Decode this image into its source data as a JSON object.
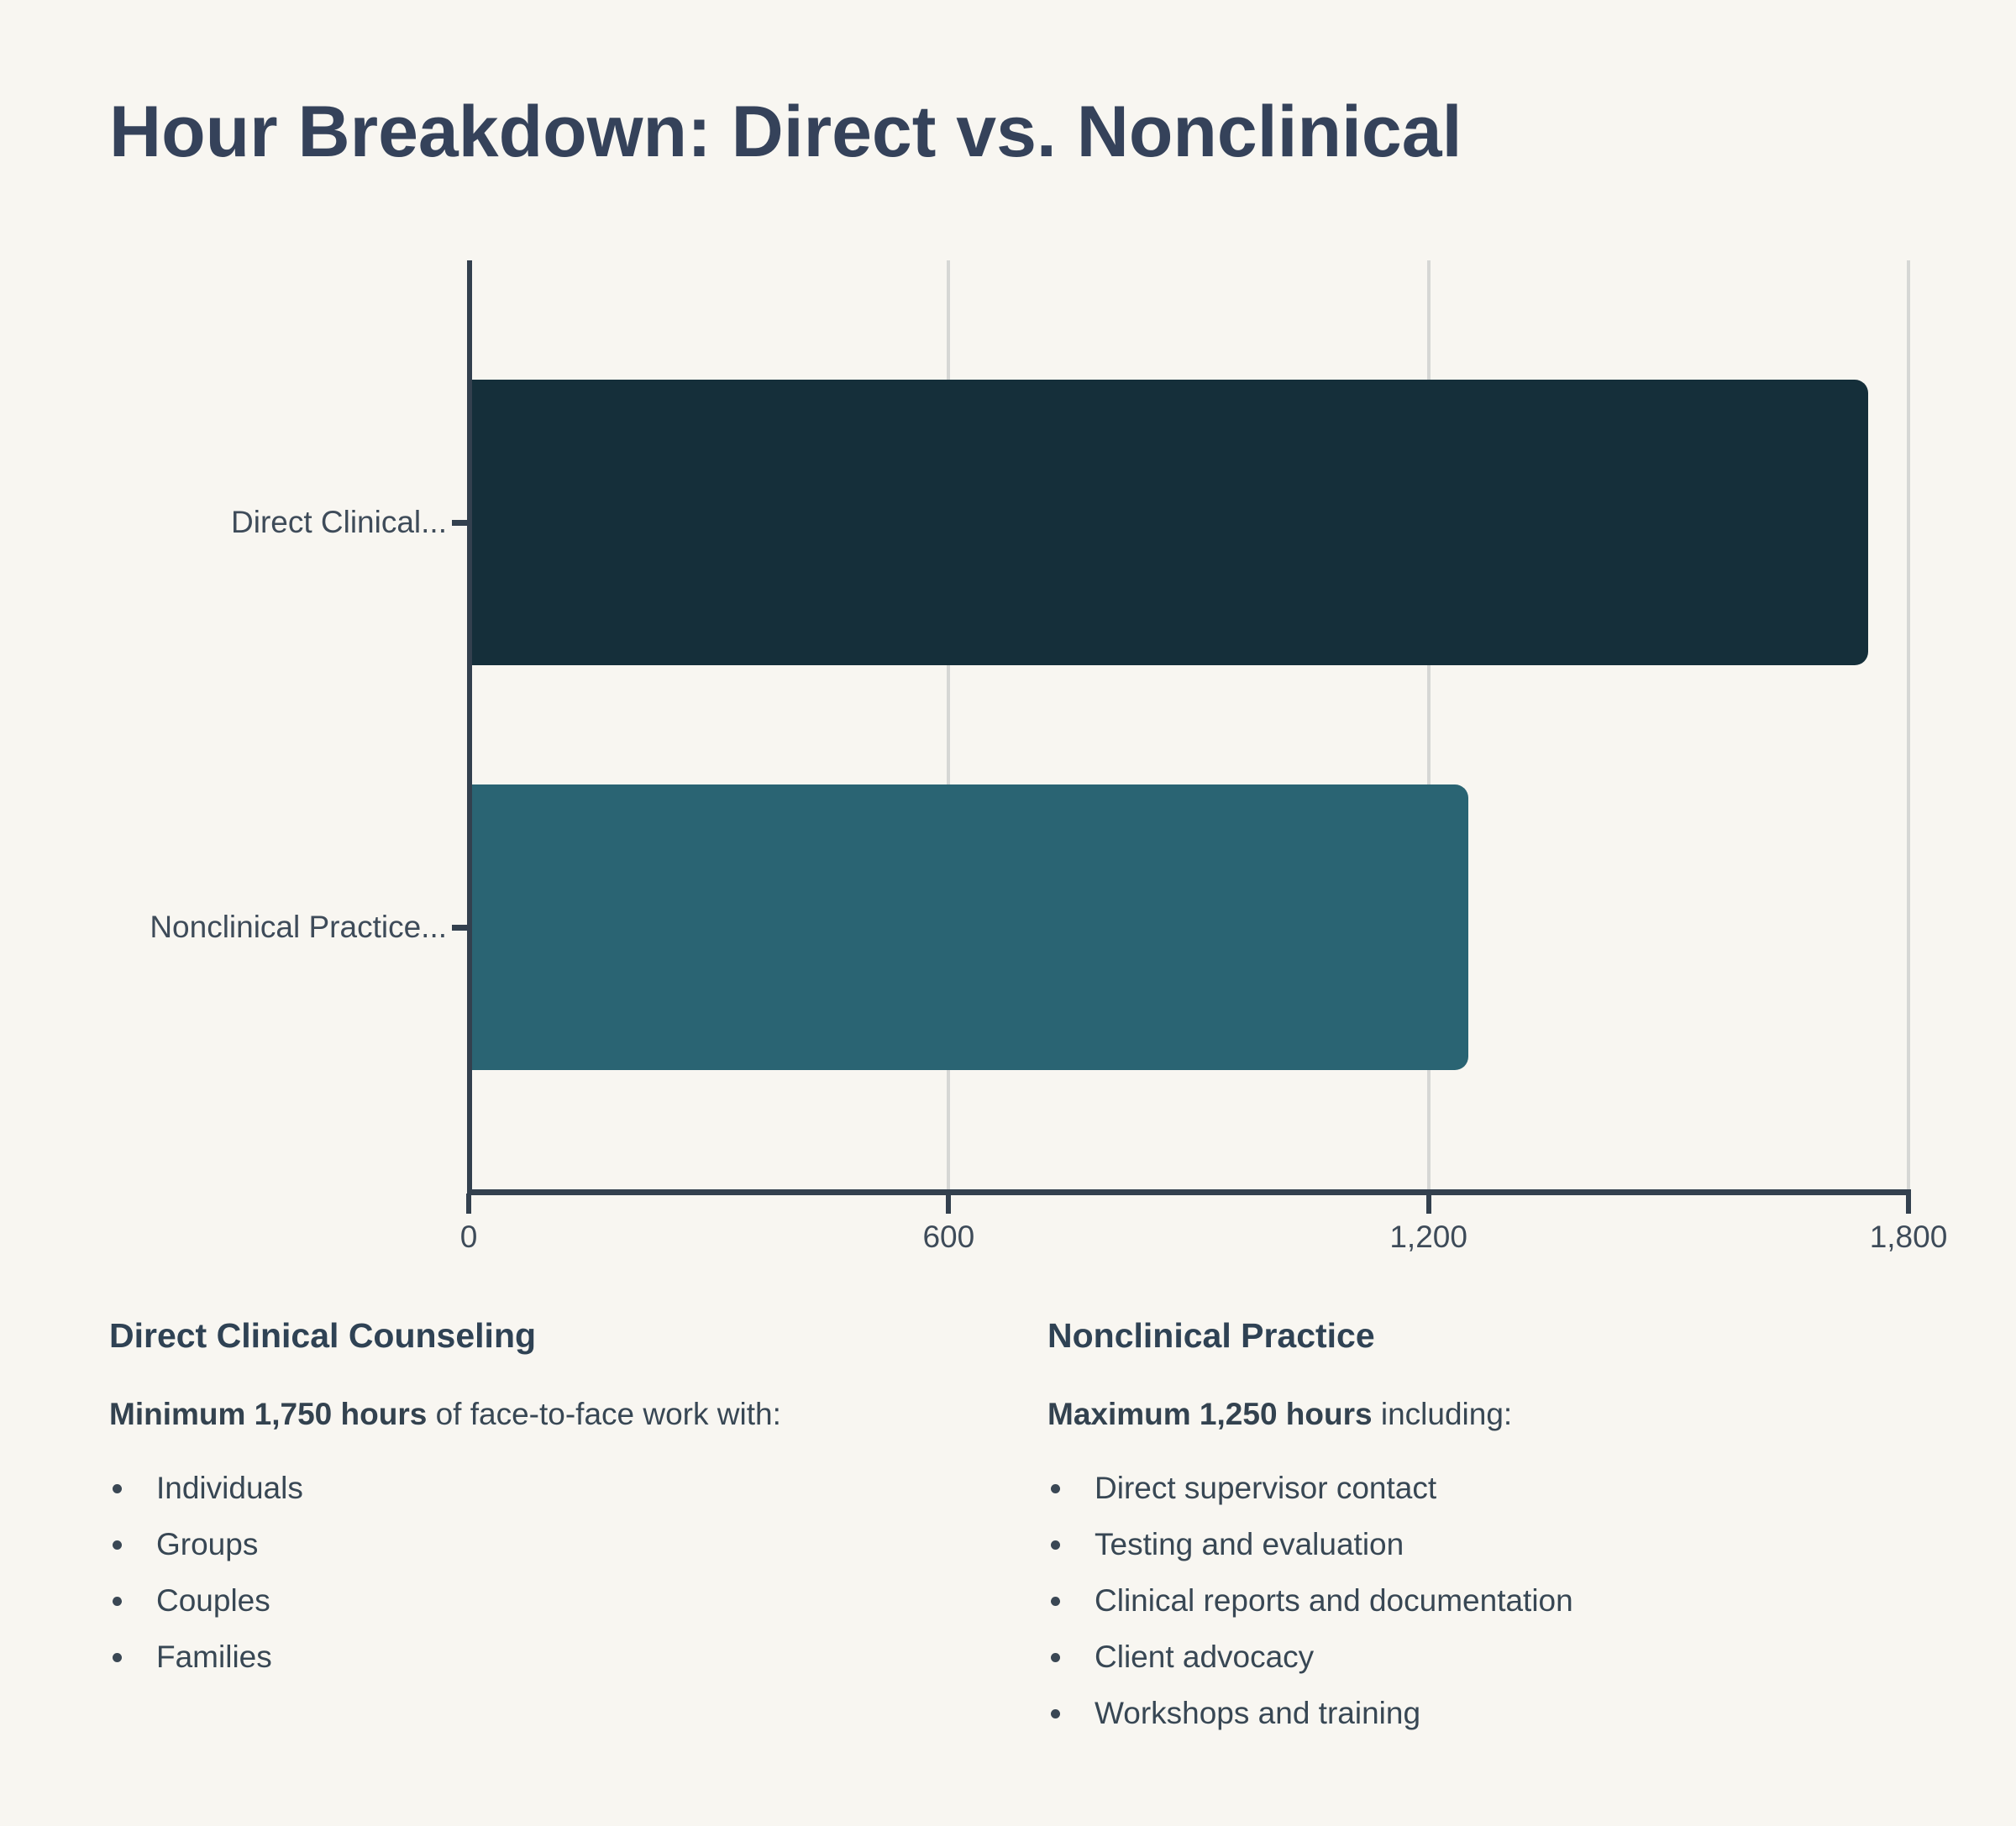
{
  "title": "Hour Breakdown: Direct vs. Nonclinical",
  "chart_data": {
    "type": "bar",
    "orientation": "horizontal",
    "title": "Hour Breakdown: Direct vs. Nonclinical",
    "categories": [
      "Direct Clinical...",
      "Nonclinical Practice..."
    ],
    "values": [
      1750,
      1250
    ],
    "bar_colors": [
      "#152F3A",
      "#2A6473"
    ],
    "xlim": [
      0,
      1800
    ],
    "xticks": [
      0,
      600,
      1200,
      1800
    ],
    "xtick_labels": [
      "0",
      "600",
      "1,200",
      "1,800"
    ],
    "grid": true,
    "legend": "none",
    "background": "#F8F6F1",
    "axis_color": "#33404E",
    "gridline_color": "#D6D7D5"
  },
  "sections": [
    {
      "heading": "Direct Clinical Counseling",
      "lead_bold": "Minimum 1,750 hours",
      "lead_rest": " of face-to-face work with:",
      "bullets": [
        "Individuals",
        "Groups",
        "Couples",
        "Families"
      ]
    },
    {
      "heading": "Nonclinical Practice",
      "lead_bold": "Maximum 1,250 hours",
      "lead_rest": " including:",
      "bullets": [
        "Direct supervisor contact",
        "Testing and evaluation",
        "Clinical reports and documentation",
        "Client advocacy",
        "Workshops and training"
      ]
    }
  ]
}
